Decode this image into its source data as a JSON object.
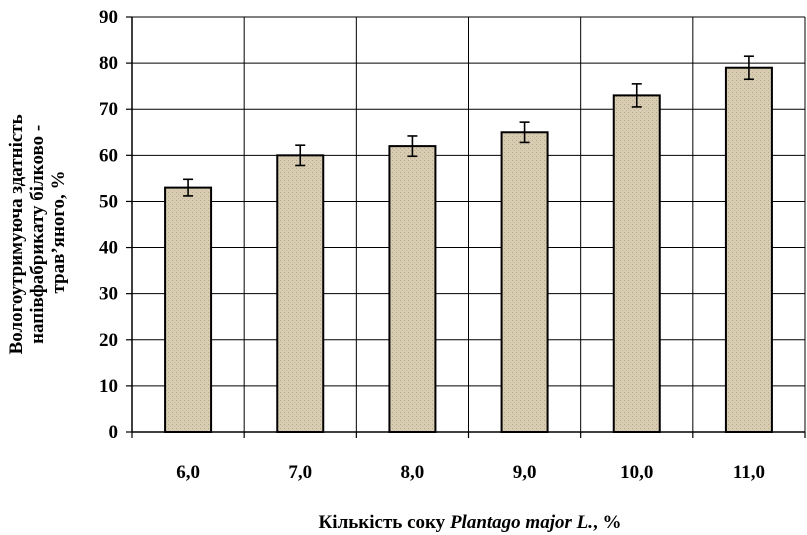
{
  "chart_data": {
    "type": "bar",
    "categories": [
      "6,0",
      "7,0",
      "8,0",
      "9,0",
      "10,0",
      "11,0"
    ],
    "values": [
      53,
      60,
      62,
      65,
      73,
      79
    ],
    "errors": [
      1.8,
      2.2,
      2.2,
      2.2,
      2.5,
      2.5
    ],
    "ylim": [
      0,
      90
    ],
    "yticks": [
      "0",
      "10",
      "20",
      "30",
      "40",
      "50",
      "60",
      "70",
      "80",
      "90"
    ],
    "ylabel_lines": [
      "Вологоутримуюча здатність",
      "напівфабрикату білково -",
      "трав’яного, %"
    ],
    "xlabel": {
      "prefix": "Кількість  соку ",
      "italic": "Plantago major L.",
      "suffix": ", %"
    },
    "grid": true,
    "bar_color": "#d9cbb0",
    "bar_edge": "#000000"
  }
}
